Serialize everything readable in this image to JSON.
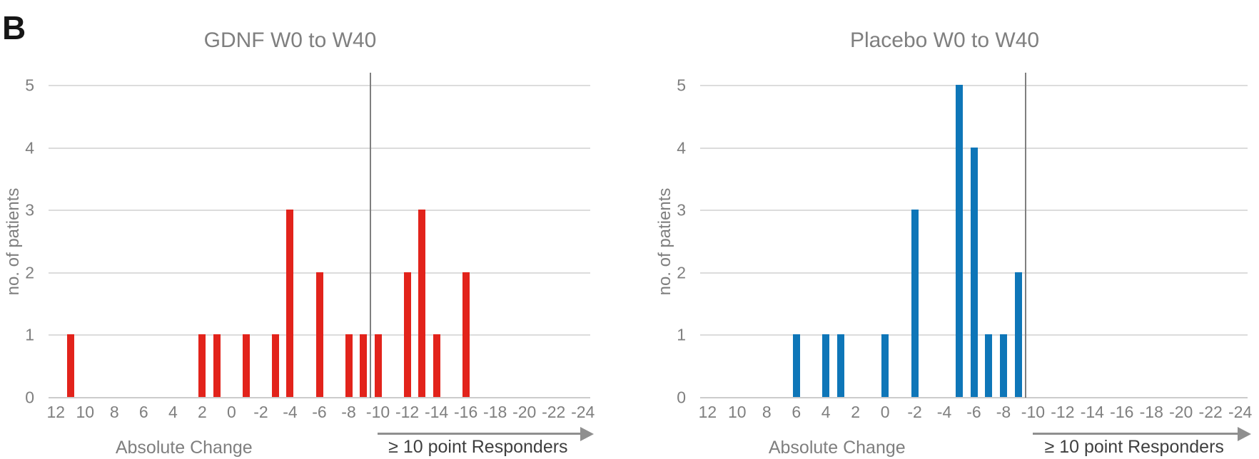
{
  "figure_label": "B",
  "colors": {
    "gdnf_bar": "#e2231b",
    "placebo_bar": "#0e76b8",
    "axis_text": "#7f7f7f",
    "gridline": "#dcdcdc",
    "responder_line": "#7f7f7f",
    "arrow": "#8f8f8f",
    "responder_label_text": "#3f3f3f"
  },
  "chart_data": [
    {
      "type": "bar",
      "title": "GDNF W0 to W40",
      "series_name": "GDNF",
      "bar_color": "#e2231b",
      "xlabel": "Absolute Change",
      "ylabel": "no. of patients",
      "x": [
        11,
        2,
        1,
        -1,
        -3,
        -4,
        -6,
        -8,
        -9,
        -10,
        -12,
        -13,
        -14,
        -16
      ],
      "values": [
        1,
        1,
        1,
        1,
        1,
        3,
        2,
        1,
        1,
        1,
        2,
        3,
        1,
        2
      ],
      "x_ticks": [
        12,
        10,
        8,
        6,
        4,
        2,
        0,
        -2,
        -4,
        -6,
        -8,
        -10,
        -12,
        -14,
        -16,
        -18,
        -20,
        -22,
        -24
      ],
      "x_bin_range": [
        12,
        -24
      ],
      "y_ticks": [
        0,
        1,
        2,
        3,
        4,
        5
      ],
      "ylim": [
        0,
        5
      ],
      "grid": true,
      "legend": "none",
      "annotations": {
        "responder_line_x": -9.5,
        "arrow_label": "≥ 10 point Responders"
      }
    },
    {
      "type": "bar",
      "title": "Placebo W0 to W40",
      "series_name": "Placebo",
      "bar_color": "#0e76b8",
      "xlabel": "Absolute Change",
      "ylabel": "no. of patients",
      "x": [
        6,
        4,
        3,
        0,
        -2,
        -5,
        -6,
        -7,
        -8,
        -9
      ],
      "values": [
        1,
        1,
        1,
        1,
        3,
        5,
        4,
        1,
        1,
        2
      ],
      "x_ticks": [
        12,
        10,
        8,
        6,
        4,
        2,
        0,
        -2,
        -4,
        -6,
        -8,
        -10,
        -12,
        -14,
        -16,
        -18,
        -20,
        -22,
        -24
      ],
      "x_bin_range": [
        12,
        -24
      ],
      "y_ticks": [
        0,
        1,
        2,
        3,
        4,
        5
      ],
      "ylim": [
        0,
        5
      ],
      "grid": true,
      "legend": "none",
      "annotations": {
        "responder_line_x": -9.5,
        "arrow_label": "≥ 10 point Responders"
      }
    }
  ]
}
